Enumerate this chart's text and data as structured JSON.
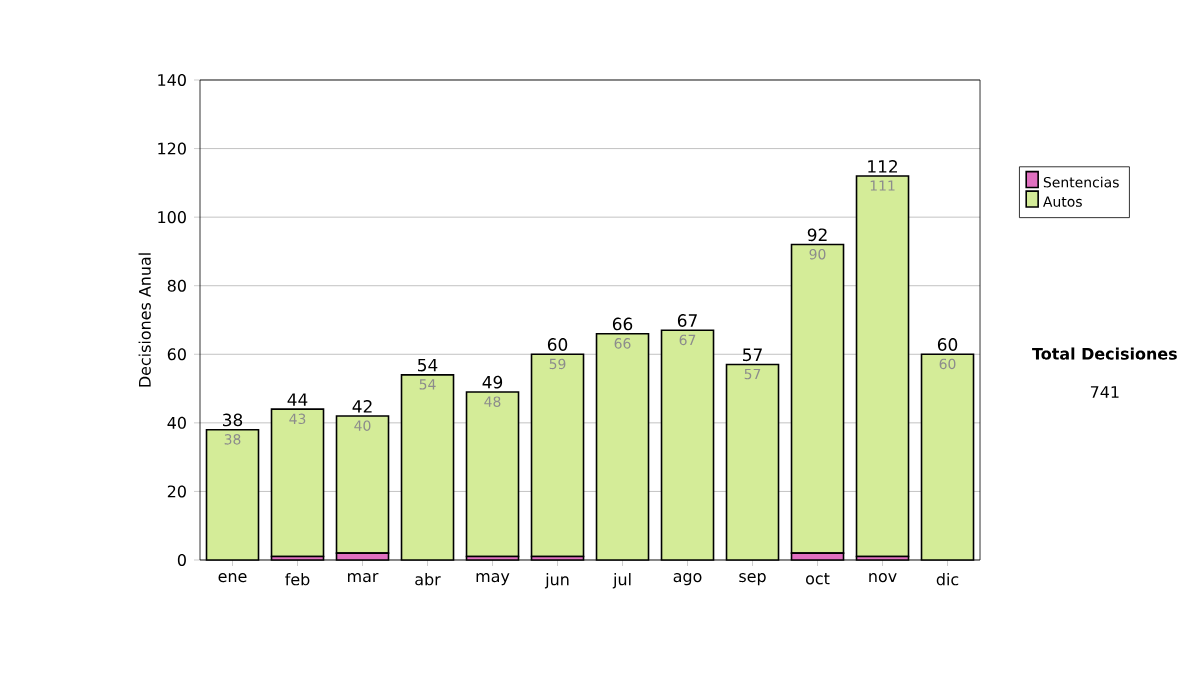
{
  "chart_data": {
    "type": "bar",
    "stacked": true,
    "ylabel": "Decisiones Anual",
    "categories": [
      "ene",
      "feb",
      "mar",
      "abr",
      "may",
      "jun",
      "jul",
      "ago",
      "sep",
      "oct",
      "nov",
      "dic"
    ],
    "series": [
      {
        "name": "Sentencias",
        "color": "#e070c0",
        "values": [
          0,
          1,
          2,
          0,
          1,
          1,
          0,
          0,
          0,
          2,
          1,
          0
        ]
      },
      {
        "name": "Autos",
        "color": "#d4ec98",
        "values": [
          38,
          43,
          40,
          54,
          48,
          59,
          66,
          67,
          57,
          90,
          111,
          60
        ],
        "value_labels": [
          "38",
          "43",
          "40",
          "54",
          "48",
          "59",
          "66",
          "67",
          "57",
          "90",
          "111",
          "60"
        ]
      }
    ],
    "totals": [
      "38",
      "44",
      "42",
      "54",
      "49",
      "60",
      "66",
      "67",
      "57",
      "92",
      "112",
      "60"
    ],
    "ylim": [
      0,
      140
    ],
    "yticks": [
      0,
      20,
      40,
      60,
      80,
      100,
      120,
      140
    ],
    "grid": "y",
    "legend": "right",
    "annotations": [
      "**Total Decisiones**",
      "741"
    ]
  }
}
